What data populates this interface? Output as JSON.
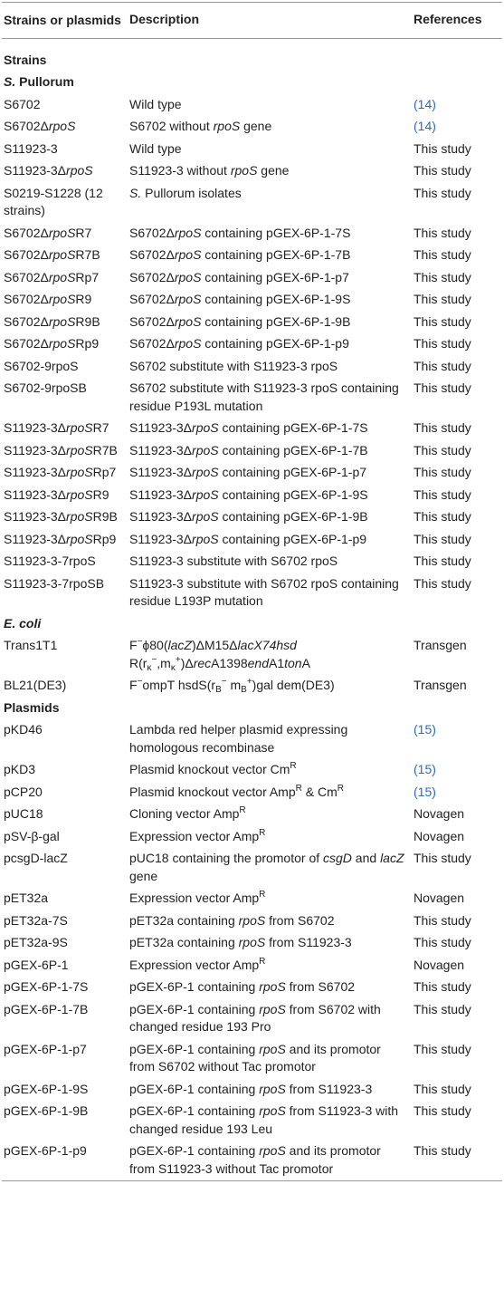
{
  "table": {
    "header": [
      "Strains or plasmids",
      "Description",
      "References"
    ],
    "rows": [
      [
        [
          {
            "b": "Strains"
          }
        ]
      ],
      [
        [
          {
            "bi": "S."
          },
          {
            "b": " Pullorum"
          }
        ]
      ],
      [
        "S6702",
        "Wild type",
        [
          {
            "a": "(14)"
          }
        ]
      ],
      [
        [
          "S6702Δ",
          {
            "i": "rpoS"
          }
        ],
        [
          "S6702 without ",
          {
            "i": "rpoS"
          },
          " gene"
        ],
        [
          {
            "a": "(14)"
          }
        ]
      ],
      [
        "S11923-3",
        "Wild type",
        "This study"
      ],
      [
        [
          "S11923-3Δ",
          {
            "i": "rpoS"
          }
        ],
        [
          "S11923-3 without ",
          {
            "i": "rpoS"
          },
          " gene"
        ],
        "This study"
      ],
      [
        "S0219-S1228 (12 strains)",
        [
          {
            "i": "S."
          },
          " Pullorum isolates"
        ],
        "This study"
      ],
      [
        [
          "S6702Δ",
          {
            "i": "rpoS"
          },
          "R7"
        ],
        [
          "S6702Δ",
          {
            "i": "rpoS"
          },
          " containing pGEX-6P-1-7S"
        ],
        "This study"
      ],
      [
        [
          "S6702Δ",
          {
            "i": "rpoS"
          },
          "R7B"
        ],
        [
          "S6702Δ",
          {
            "i": "rpoS"
          },
          " containing pGEX-6P-1-7B"
        ],
        "This study"
      ],
      [
        [
          "S6702Δ",
          {
            "i": "rpoS"
          },
          "Rp7"
        ],
        [
          "S6702Δ",
          {
            "i": "rpoS"
          },
          " containing pGEX-6P-1-p7"
        ],
        "This study"
      ],
      [
        [
          "S6702Δ",
          {
            "i": "rpoS"
          },
          "R9"
        ],
        [
          "S6702Δ",
          {
            "i": "rpoS"
          },
          " containing pGEX-6P-1-9S"
        ],
        "This study"
      ],
      [
        [
          "S6702Δ",
          {
            "i": "rpoS"
          },
          "R9B"
        ],
        [
          "S6702Δ",
          {
            "i": "rpoS"
          },
          " containing pGEX-6P-1-9B"
        ],
        "This study"
      ],
      [
        [
          "S6702Δ",
          {
            "i": "rpoS"
          },
          "Rp9"
        ],
        [
          "S6702Δ",
          {
            "i": "rpoS"
          },
          " containing pGEX-6P-1-p9"
        ],
        "This study"
      ],
      [
        "S6702-9rpoS",
        "S6702 substitute with S11923-3 rpoS",
        "This study"
      ],
      [
        "S6702-9rpoSB",
        "S6702 substitute with S11923-3 rpoS containing residue P193L mutation",
        "This study"
      ],
      [
        [
          "S11923-3Δ",
          {
            "i": "rpoS"
          },
          "R7"
        ],
        [
          "S11923-3Δ",
          {
            "i": "rpoS"
          },
          " containing pGEX-6P-1-7S"
        ],
        "This study"
      ],
      [
        [
          "S11923-3Δ",
          {
            "i": "rpoS"
          },
          "R7B"
        ],
        [
          "S11923-3Δ",
          {
            "i": "rpoS"
          },
          " containing pGEX-6P-1-7B"
        ],
        "This study"
      ],
      [
        [
          "S11923-3Δ",
          {
            "i": "rpoS"
          },
          "Rp7"
        ],
        [
          "S11923-3Δ",
          {
            "i": "rpoS"
          },
          " containing pGEX-6P-1-p7"
        ],
        "This study"
      ],
      [
        [
          "S11923-3Δ",
          {
            "i": "rpoS"
          },
          "R9"
        ],
        [
          "S11923-3Δ",
          {
            "i": "rpoS"
          },
          " containing pGEX-6P-1-9S"
        ],
        "This study"
      ],
      [
        [
          "S11923-3Δ",
          {
            "i": "rpoS"
          },
          "R9B"
        ],
        [
          "S11923-3Δ",
          {
            "i": "rpoS"
          },
          " containing pGEX-6P-1-9B"
        ],
        "This study"
      ],
      [
        [
          "S11923-3Δ",
          {
            "i": "rpoS"
          },
          "Rp9"
        ],
        [
          "S11923-3Δ",
          {
            "i": "rpoS"
          },
          " containing pGEX-6P-1-p9"
        ],
        "This study"
      ],
      [
        "S11923-3-7rpoS",
        "S11923-3 substitute with S6702 rpoS",
        "This study"
      ],
      [
        "S11923-3-7rpoSB",
        "S11923-3 substitute with S6702 rpoS containing residue L193P mutation",
        "This study"
      ],
      [
        [
          {
            "bi": "E. coli"
          }
        ]
      ],
      [
        "Trans1T1",
        [
          "F",
          {
            "sup": "−"
          },
          "ϕ80(",
          {
            "i": "lacZ"
          },
          ")ΔM15Δ",
          {
            "i": "lacX74hsd"
          },
          " R(r",
          {
            "sub": "κ"
          },
          {
            "sup": "−"
          },
          ",m",
          {
            "sub": "κ"
          },
          {
            "sup": "+"
          },
          ")Δ",
          {
            "i": "rec"
          },
          "A1398",
          {
            "i": "end"
          },
          "A1",
          {
            "i": "ton"
          },
          "A"
        ],
        "Transgen"
      ],
      [
        "BL21(DE3)",
        [
          "F",
          {
            "sup": "−"
          },
          "ompT hsdS(r",
          {
            "sub": "B"
          },
          {
            "sup": "−"
          },
          " m",
          {
            "sub": "B"
          },
          {
            "sup": "+"
          },
          ")gal dem(DE3)"
        ],
        "Transgen"
      ],
      [
        [
          {
            "b": "Plasmids"
          }
        ]
      ],
      [
        "pKD46",
        "Lambda red helper plasmid expressing homologous recombinase",
        [
          {
            "a": "(15)"
          }
        ]
      ],
      [
        "pKD3",
        [
          "Plasmid knockout vector Cm",
          {
            "sup": "R"
          }
        ],
        [
          {
            "a": "(15)"
          }
        ]
      ],
      [
        "pCP20",
        [
          "Plasmid knockout vector Amp",
          {
            "sup": "R"
          },
          " & Cm",
          {
            "sup": "R"
          }
        ],
        [
          {
            "a": "(15)"
          }
        ]
      ],
      [
        "pUC18",
        [
          "Cloning vector Amp",
          {
            "sup": "R"
          }
        ],
        "Novagen"
      ],
      [
        "pSV-β-gal",
        [
          "Expression vector Amp",
          {
            "sup": "R"
          }
        ],
        "Novagen"
      ],
      [
        "pcsgD-lacZ",
        [
          "pUC18 containing the promotor of ",
          {
            "i": "csgD"
          },
          " and ",
          {
            "i": "lacZ"
          },
          " gene"
        ],
        "This study"
      ],
      [
        "pET32a",
        [
          "Expression vector Amp",
          {
            "sup": "R"
          }
        ],
        "Novagen"
      ],
      [
        "pET32a-7S",
        [
          "pET32a containing ",
          {
            "i": "rpoS"
          },
          " from S6702"
        ],
        "This study"
      ],
      [
        "pET32a-9S",
        [
          "pET32a containing ",
          {
            "i": "rpoS"
          },
          " from S11923-3"
        ],
        "This study"
      ],
      [
        "pGEX-6P-1",
        [
          "Expression vector Amp",
          {
            "sup": "R"
          }
        ],
        "Novagen"
      ],
      [
        "pGEX-6P-1-7S",
        [
          "pGEX-6P-1 containing ",
          {
            "i": "rpoS"
          },
          " from S6702"
        ],
        "This study"
      ],
      [
        "pGEX-6P-1-7B",
        [
          "pGEX-6P-1 containing ",
          {
            "i": "rpoS"
          },
          " from S6702 with changed residue 193 Pro"
        ],
        "This study"
      ],
      [
        "pGEX-6P-1-p7",
        [
          "pGEX-6P-1 containing ",
          {
            "i": "rpoS"
          },
          " and its promotor from S6702 without Tac promotor"
        ],
        "This study"
      ],
      [
        "pGEX-6P-1-9S",
        [
          "pGEX-6P-1 containing ",
          {
            "i": "rpoS"
          },
          " from S11923-3"
        ],
        "This study"
      ],
      [
        "pGEX-6P-1-9B",
        [
          "pGEX-6P-1 containing ",
          {
            "i": "rpoS"
          },
          " from S11923-3 with changed residue 193 Leu"
        ],
        "This study"
      ],
      [
        "pGEX-6P-1-p9",
        [
          "pGEX-6P-1 containing ",
          {
            "i": "rpoS"
          },
          " and its promotor from S11923-3 without Tac promotor"
        ],
        "This study"
      ]
    ]
  }
}
